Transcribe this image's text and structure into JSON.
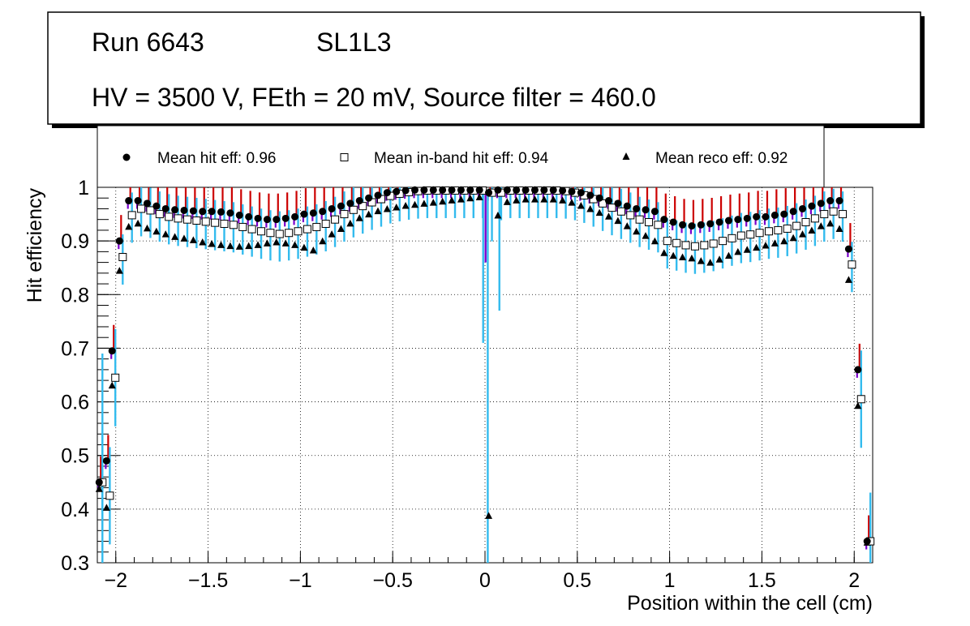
{
  "chart_data": {
    "type": "scatter",
    "title_run": "Run 6643",
    "title_layer": "SL1L3",
    "title_conditions": "HV = 3500 V, FEth = 20 mV, Source filter = 460.0",
    "xlabel": "Position within the cell (cm)",
    "ylabel": "Hit efficiency",
    "xlim": [
      -2.1,
      2.1
    ],
    "ylim": [
      0.3,
      1.0
    ],
    "grid": true,
    "x_ticks": [
      {
        "value": -2,
        "label": "−2"
      },
      {
        "value": -1.5,
        "label": "−1.5"
      },
      {
        "value": -1,
        "label": "−1"
      },
      {
        "value": -0.5,
        "label": "−0.5"
      },
      {
        "value": 0,
        "label": "0"
      },
      {
        "value": 0.5,
        "label": "0.5"
      },
      {
        "value": 1,
        "label": "1"
      },
      {
        "value": 1.5,
        "label": "1.5"
      },
      {
        "value": 2,
        "label": "2"
      }
    ],
    "y_ticks": [
      {
        "value": 0.3,
        "label": "0.3"
      },
      {
        "value": 0.4,
        "label": "0.4"
      },
      {
        "value": 0.5,
        "label": "0.5"
      },
      {
        "value": 0.6,
        "label": "0.6"
      },
      {
        "value": 0.7,
        "label": "0.7"
      },
      {
        "value": 0.8,
        "label": "0.8"
      },
      {
        "value": 0.9,
        "label": "0.9"
      },
      {
        "value": 1.0,
        "label": "1"
      }
    ],
    "legend": [
      {
        "marker": "circle",
        "label": "Mean hit  eff: 0.96"
      },
      {
        "marker": "open-square",
        "label": "Mean in-band hit eff: 0.94"
      },
      {
        "marker": "triangle",
        "label": "Mean reco eff: 0.92"
      }
    ],
    "colors": {
      "hit_marker": "#000000",
      "hit_error_up": "#cc0000",
      "hit_error_down": "#7a00cc",
      "inband_error": "#33bbee",
      "reco_marker": "#000000"
    },
    "series": [
      {
        "name": "Mean hit eff",
        "marker": "circle",
        "x": [
          -2.09,
          -2.05,
          -2.02,
          -1.98,
          -1.93,
          -1.88,
          -1.83,
          -1.78,
          -1.73,
          -1.68,
          -1.63,
          -1.58,
          -1.53,
          -1.48,
          -1.43,
          -1.38,
          -1.33,
          -1.28,
          -1.23,
          -1.18,
          -1.13,
          -1.08,
          -1.03,
          -0.98,
          -0.93,
          -0.88,
          -0.83,
          -0.78,
          -0.73,
          -0.68,
          -0.63,
          -0.58,
          -0.53,
          -0.48,
          -0.43,
          -0.38,
          -0.33,
          -0.28,
          -0.23,
          -0.18,
          -0.13,
          -0.08,
          -0.03,
          0.02,
          0.07,
          0.12,
          0.17,
          0.22,
          0.27,
          0.32,
          0.37,
          0.42,
          0.47,
          0.52,
          0.57,
          0.62,
          0.67,
          0.72,
          0.77,
          0.82,
          0.87,
          0.92,
          0.97,
          1.02,
          1.07,
          1.12,
          1.17,
          1.22,
          1.27,
          1.32,
          1.37,
          1.42,
          1.47,
          1.52,
          1.57,
          1.62,
          1.67,
          1.72,
          1.77,
          1.82,
          1.87,
          1.92,
          1.97,
          2.02,
          2.07
        ],
        "y": [
          0.45,
          0.49,
          0.695,
          0.9,
          0.975,
          0.975,
          0.97,
          0.965,
          0.96,
          0.958,
          0.957,
          0.956,
          0.955,
          0.955,
          0.954,
          0.952,
          0.948,
          0.945,
          0.942,
          0.94,
          0.94,
          0.942,
          0.945,
          0.95,
          0.952,
          0.955,
          0.96,
          0.965,
          0.97,
          0.975,
          0.98,
          0.985,
          0.99,
          0.992,
          0.994,
          0.995,
          0.995,
          0.995,
          0.995,
          0.995,
          0.995,
          0.995,
          0.995,
          0.99,
          0.995,
          0.995,
          0.995,
          0.995,
          0.995,
          0.995,
          0.995,
          0.994,
          0.992,
          0.99,
          0.985,
          0.98,
          0.975,
          0.97,
          0.965,
          0.96,
          0.958,
          0.955,
          0.94,
          0.935,
          0.93,
          0.928,
          0.93,
          0.932,
          0.935,
          0.938,
          0.94,
          0.942,
          0.945,
          0.945,
          0.948,
          0.95,
          0.955,
          0.96,
          0.965,
          0.97,
          0.975,
          0.975,
          0.885,
          0.66,
          0.34
        ]
      },
      {
        "name": "Mean in-band hit eff",
        "marker": "open-square",
        "x": [
          -2.09,
          -2.05,
          -2.02,
          -1.98,
          -1.93,
          -1.88,
          -1.83,
          -1.78,
          -1.73,
          -1.68,
          -1.63,
          -1.58,
          -1.53,
          -1.48,
          -1.43,
          -1.38,
          -1.33,
          -1.28,
          -1.23,
          -1.18,
          -1.13,
          -1.08,
          -1.03,
          -0.98,
          -0.93,
          -0.88,
          -0.83,
          -0.78,
          -0.73,
          -0.68,
          -0.63,
          -0.58,
          -0.53,
          -0.48,
          -0.43,
          -0.38,
          -0.33,
          -0.28,
          -0.23,
          -0.18,
          -0.13,
          -0.08,
          -0.03,
          0.02,
          0.07,
          0.12,
          0.17,
          0.22,
          0.27,
          0.32,
          0.37,
          0.42,
          0.47,
          0.52,
          0.57,
          0.62,
          0.67,
          0.72,
          0.77,
          0.82,
          0.87,
          0.92,
          0.97,
          1.02,
          1.07,
          1.12,
          1.17,
          1.22,
          1.27,
          1.32,
          1.37,
          1.42,
          1.47,
          1.52,
          1.57,
          1.62,
          1.67,
          1.72,
          1.77,
          1.82,
          1.87,
          1.92,
          1.97,
          2.02,
          2.07
        ],
        "y": [
          0.45,
          0.425,
          0.645,
          0.87,
          0.948,
          0.96,
          0.957,
          0.95,
          0.945,
          0.942,
          0.94,
          0.938,
          0.936,
          0.934,
          0.932,
          0.93,
          0.926,
          0.922,
          0.918,
          0.915,
          0.913,
          0.915,
          0.918,
          0.922,
          0.926,
          0.932,
          0.94,
          0.95,
          0.958,
          0.965,
          0.972,
          0.978,
          0.984,
          0.988,
          0.991,
          0.993,
          0.994,
          0.994,
          0.994,
          0.994,
          0.994,
          0.994,
          0.994,
          0.99,
          0.99,
          0.994,
          0.994,
          0.994,
          0.994,
          0.994,
          0.994,
          0.993,
          0.99,
          0.985,
          0.978,
          0.97,
          0.962,
          0.955,
          0.948,
          0.94,
          0.935,
          0.93,
          0.9,
          0.896,
          0.892,
          0.89,
          0.892,
          0.895,
          0.9,
          0.905,
          0.91,
          0.912,
          0.915,
          0.918,
          0.92,
          0.923,
          0.928,
          0.935,
          0.942,
          0.95,
          0.955,
          0.95,
          0.856,
          0.605,
          0.34
        ]
      },
      {
        "name": "Mean reco eff",
        "marker": "triangle",
        "x": [
          -2.09,
          -2.05,
          -2.02,
          -1.98,
          -1.93,
          -1.88,
          -1.83,
          -1.78,
          -1.73,
          -1.68,
          -1.63,
          -1.58,
          -1.53,
          -1.48,
          -1.43,
          -1.38,
          -1.33,
          -1.28,
          -1.23,
          -1.18,
          -1.13,
          -1.08,
          -1.03,
          -0.98,
          -0.93,
          -0.88,
          -0.83,
          -0.78,
          -0.73,
          -0.68,
          -0.63,
          -0.58,
          -0.53,
          -0.48,
          -0.43,
          -0.38,
          -0.33,
          -0.28,
          -0.23,
          -0.18,
          -0.13,
          -0.08,
          -0.03,
          0.02,
          0.07,
          0.12,
          0.17,
          0.22,
          0.27,
          0.32,
          0.37,
          0.42,
          0.47,
          0.52,
          0.57,
          0.62,
          0.67,
          0.72,
          0.77,
          0.82,
          0.87,
          0.92,
          0.97,
          1.02,
          1.07,
          1.12,
          1.17,
          1.22,
          1.27,
          1.32,
          1.37,
          1.42,
          1.47,
          1.52,
          1.57,
          1.62,
          1.67,
          1.72,
          1.77,
          1.82,
          1.87,
          1.92,
          1.97,
          2.02,
          2.07
        ],
        "y": [
          0.45,
          0.415,
          0.643,
          0.857,
          0.939,
          0.945,
          0.936,
          0.93,
          0.925,
          0.92,
          0.917,
          0.914,
          0.91,
          0.907,
          0.905,
          0.903,
          0.902,
          0.903,
          0.905,
          0.908,
          0.91,
          0.908,
          0.905,
          0.9,
          0.895,
          0.912,
          0.925,
          0.935,
          0.945,
          0.955,
          0.962,
          0.968,
          0.972,
          0.975,
          0.978,
          0.98,
          0.982,
          0.984,
          0.986,
          0.988,
          0.99,
          0.992,
          0.994,
          0.4,
          0.96,
          0.985,
          0.988,
          0.99,
          0.99,
          0.99,
          0.99,
          0.988,
          0.984,
          0.978,
          0.972,
          0.965,
          0.958,
          0.95,
          0.94,
          0.93,
          0.922,
          0.912,
          0.89,
          0.885,
          0.882,
          0.88,
          0.875,
          0.872,
          0.878,
          0.885,
          0.892,
          0.896,
          0.9,
          0.904,
          0.908,
          0.912,
          0.918,
          0.925,
          0.932,
          0.94,
          0.945,
          0.935,
          0.84,
          0.605,
          0.35
        ]
      }
    ]
  }
}
